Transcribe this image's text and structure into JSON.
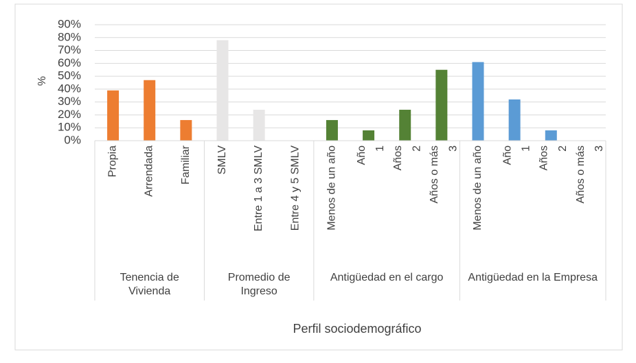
{
  "chart_data": {
    "type": "bar",
    "y_label": "%",
    "x_label": "Perfil sociodemográfico",
    "ylim": [
      0,
      90
    ],
    "yticks": [
      {
        "value": 0,
        "label": "0%"
      },
      {
        "value": 10,
        "label": "10%"
      },
      {
        "value": 20,
        "label": "20%"
      },
      {
        "value": 30,
        "label": "30%"
      },
      {
        "value": 40,
        "label": "40%"
      },
      {
        "value": 50,
        "label": "50%"
      },
      {
        "value": 60,
        "label": "60%"
      },
      {
        "value": 70,
        "label": "70%"
      },
      {
        "value": 80,
        "label": "80%"
      },
      {
        "value": 90,
        "label": "90%"
      }
    ],
    "grid": true,
    "groups": [
      {
        "name": "Tenencia de Vivienda",
        "color": "#ed7d31",
        "categories": [
          "Propia",
          "Arrendada",
          "Familiar"
        ],
        "values": [
          39,
          47,
          16
        ]
      },
      {
        "name": "Promedio de Ingreso",
        "color": "#e7e6e6",
        "categories": [
          "SMLV",
          "Entre 1 a 3 SMLV",
          "Entre 4 y 5 SMLV"
        ],
        "values": [
          78,
          24,
          0
        ]
      },
      {
        "name": "Antigüedad en el cargo",
        "color": "#548235",
        "categories": [
          "Menos de un año",
          "Año\n1",
          "Años\n2",
          "Años  o más\n3"
        ],
        "values": [
          16,
          8,
          24,
          55
        ]
      },
      {
        "name": "Antigüedad en la Empresa",
        "color": "#5b9bd5",
        "categories": [
          "Menos de un año",
          "Año\n1",
          "Años\n2",
          "Años  o más\n3"
        ],
        "values": [
          61,
          32,
          8,
          0
        ]
      }
    ]
  }
}
